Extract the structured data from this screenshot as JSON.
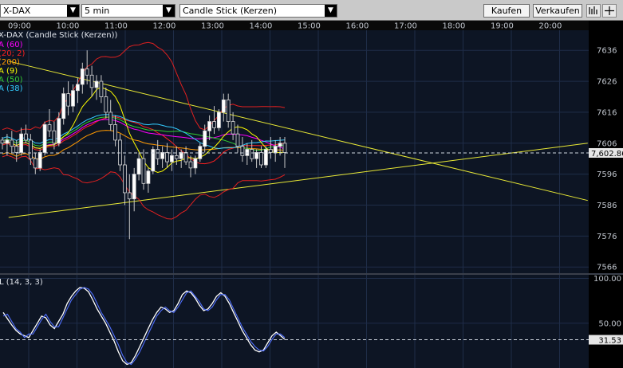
{
  "toolbar": {
    "instrument": "X-DAX",
    "interval": "5 min",
    "chart_style": "Candle Stick (Kerzen)",
    "buy_label": "Kaufen",
    "sell_label": "Verkaufen",
    "tool_icons": [
      "chart-type-icon",
      "crosshair-icon"
    ]
  },
  "chart_data": [
    {
      "type": "candlestick",
      "title": "X-DAX (Candle Stick (Kerzen))",
      "x_ticks": [
        "09:00",
        "10:00",
        "11:00",
        "12:00",
        "13:00",
        "14:00",
        "15:00",
        "16:00",
        "17:00",
        "18:00",
        "19:00",
        "20:00"
      ],
      "y_ticks": [
        7566,
        7576,
        7586,
        7596,
        7606,
        7616,
        7626,
        7636
      ],
      "ylim": [
        7564,
        7643
      ],
      "indicators": [
        {
          "label": "A (60)",
          "color": "#ff00ff"
        },
        {
          "label": "(20; 2)",
          "color": "#ff2020"
        },
        {
          "label": "(200)",
          "color": "#ff9900"
        },
        {
          "label": "A (9)",
          "color": "#ffff00"
        },
        {
          "label": "A (50)",
          "color": "#33cc33"
        },
        {
          "label": "A (38)",
          "color": "#33ccff"
        }
      ],
      "last_price": {
        "value": 7602.86,
        "label": "7,602.86"
      },
      "trendlines": [
        {
          "from": [
            "08:35",
            7632.5
          ],
          "to": [
            "20:35",
            7587.5
          ]
        },
        {
          "from": [
            "08:35",
            7582
          ],
          "to": [
            "20:35",
            7606
          ]
        }
      ],
      "ohlc": [
        [
          7607,
          7608,
          7604,
          7606
        ],
        [
          7606,
          7609,
          7602,
          7607
        ],
        [
          7607,
          7610,
          7603,
          7605
        ],
        [
          7605,
          7607,
          7600,
          7603
        ],
        [
          7603,
          7611,
          7602,
          7609
        ],
        [
          7609,
          7612,
          7606,
          7607
        ],
        [
          7607,
          7609,
          7599,
          7601
        ],
        [
          7601,
          7603,
          7596,
          7598
        ],
        [
          7598,
          7604,
          7597,
          7603
        ],
        [
          7603,
          7613,
          7602,
          7612
        ],
        [
          7612,
          7617,
          7608,
          7610
        ],
        [
          7610,
          7613,
          7604,
          7606
        ],
        [
          7606,
          7616,
          7605,
          7614
        ],
        [
          7614,
          7624,
          7612,
          7622
        ],
        [
          7622,
          7626,
          7615,
          7618
        ],
        [
          7618,
          7625,
          7616,
          7623
        ],
        [
          7623,
          7627,
          7619,
          7625
        ],
        [
          7625,
          7632,
          7622,
          7630
        ],
        [
          7630,
          7636,
          7625,
          7628
        ],
        [
          7628,
          7631,
          7621,
          7624
        ],
        [
          7624,
          7628,
          7620,
          7626
        ],
        [
          7626,
          7628,
          7619,
          7621
        ],
        [
          7621,
          7624,
          7614,
          7616
        ],
        [
          7616,
          7620,
          7610,
          7612
        ],
        [
          7612,
          7615,
          7605,
          7607
        ],
        [
          7607,
          7609,
          7597,
          7599
        ],
        [
          7599,
          7602,
          7586,
          7590
        ],
        [
          7590,
          7596,
          7575,
          7588
        ],
        [
          7588,
          7598,
          7584,
          7596
        ],
        [
          7596,
          7603,
          7594,
          7601
        ],
        [
          7601,
          7604,
          7591,
          7593
        ],
        [
          7593,
          7598,
          7590,
          7597
        ],
        [
          7597,
          7605,
          7596,
          7604
        ],
        [
          7604,
          7607,
          7599,
          7601
        ],
        [
          7601,
          7605,
          7598,
          7603
        ],
        [
          7603,
          7606,
          7598,
          7600
        ],
        [
          7600,
          7604,
          7597,
          7602
        ],
        [
          7602,
          7605,
          7599,
          7601
        ],
        [
          7601,
          7604,
          7598,
          7603
        ],
        [
          7603,
          7605,
          7599,
          7600
        ],
        [
          7600,
          7602,
          7595,
          7598
        ],
        [
          7598,
          7602,
          7596,
          7601
        ],
        [
          7601,
          7606,
          7600,
          7605
        ],
        [
          7605,
          7612,
          7603,
          7610
        ],
        [
          7610,
          7615,
          7607,
          7613
        ],
        [
          7613,
          7618,
          7609,
          7611
        ],
        [
          7611,
          7617,
          7610,
          7616
        ],
        [
          7616,
          7622,
          7613,
          7620
        ],
        [
          7620,
          7622,
          7611,
          7613
        ],
        [
          7613,
          7616,
          7607,
          7609
        ],
        [
          7609,
          7612,
          7603,
          7605
        ],
        [
          7605,
          7608,
          7600,
          7602
        ],
        [
          7602,
          7606,
          7599,
          7604
        ],
        [
          7604,
          7607,
          7600,
          7601
        ],
        [
          7601,
          7604,
          7598,
          7603
        ],
        [
          7603,
          7605,
          7598,
          7599
        ],
        [
          7599,
          7605,
          7598,
          7604
        ],
        [
          7604,
          7608,
          7601,
          7603
        ],
        [
          7603,
          7607,
          7600,
          7605
        ],
        [
          7605,
          7608,
          7602,
          7606
        ],
        [
          7606,
          7608,
          7598,
          7603
        ]
      ]
    },
    {
      "type": "line",
      "title": "L (14, 3, 3)",
      "y_ticks": [
        50,
        100
      ],
      "y_tick_labels": [
        "50.00",
        "100.00"
      ],
      "ylim": [
        0,
        104
      ],
      "last_value": {
        "value": 31.53,
        "label": "31.53"
      },
      "series": [
        {
          "color": "#ffffff",
          "values": [
            62,
            55,
            48,
            42,
            38,
            36,
            34,
            42,
            50,
            58,
            56,
            48,
            44,
            52,
            60,
            72,
            80,
            86,
            90,
            89,
            85,
            76,
            66,
            58,
            50,
            40,
            30,
            18,
            8,
            4,
            6,
            14,
            24,
            34,
            44,
            54,
            62,
            68,
            66,
            62,
            64,
            72,
            82,
            86,
            84,
            78,
            70,
            64,
            66,
            72,
            80,
            84,
            80,
            72,
            62,
            52,
            42,
            34,
            26,
            20,
            18,
            20,
            28,
            36,
            40,
            36,
            32
          ]
        },
        {
          "color": "#4f6fff",
          "values": [
            58,
            60,
            52,
            44,
            40,
            34,
            38,
            38,
            46,
            54,
            60,
            52,
            46,
            46,
            56,
            66,
            76,
            82,
            88,
            90,
            88,
            82,
            72,
            62,
            54,
            46,
            36,
            26,
            14,
            6,
            4,
            10,
            18,
            28,
            38,
            48,
            58,
            64,
            68,
            64,
            62,
            68,
            76,
            84,
            86,
            80,
            74,
            66,
            64,
            68,
            76,
            82,
            82,
            76,
            66,
            56,
            46,
            38,
            30,
            24,
            20,
            19,
            24,
            32,
            38,
            38,
            34
          ]
        }
      ]
    }
  ]
}
